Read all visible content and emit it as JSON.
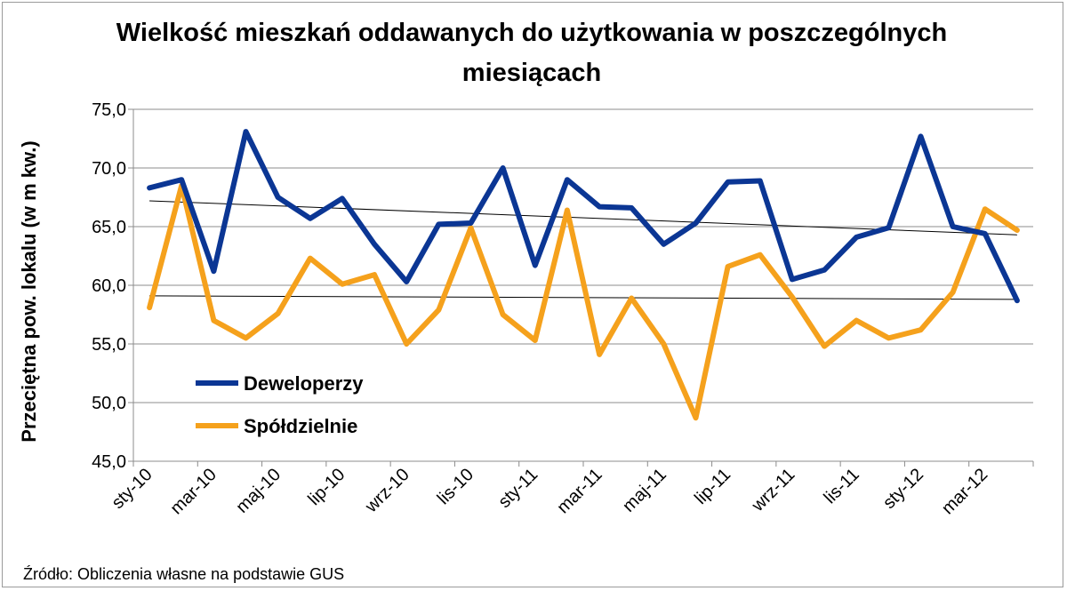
{
  "chart_data": {
    "type": "line",
    "title_lines": [
      "Wielkość mieszkań oddawanych do użytkowania  w poszczególnych",
      "miesiącach"
    ],
    "ylabel": "Przeciętna pow. lokalu (w m kw.)",
    "xlabel": "",
    "ylim": [
      45,
      75
    ],
    "yticks": [
      "45,0",
      "50,0",
      "55,0",
      "60,0",
      "65,0",
      "70,0",
      "75,0"
    ],
    "grid": true,
    "legend_position": "bottom-left inside",
    "categories": [
      "sty-10",
      "lut-10",
      "mar-10",
      "kwi-10",
      "maj-10",
      "cze-10",
      "lip-10",
      "sie-10",
      "wrz-10",
      "paź-10",
      "lis-10",
      "gru-10",
      "sty-11",
      "lut-11",
      "mar-11",
      "kwi-11",
      "maj-11",
      "cze-11",
      "lip-11",
      "sie-11",
      "wrz-11",
      "paź-11",
      "lis-11",
      "gru-11",
      "sty-12",
      "lut-12",
      "mar-12",
      "kwi-12"
    ],
    "xtick_labels": [
      "sty-10",
      "mar-10",
      "maj-10",
      "lip-10",
      "wrz-10",
      "lis-10",
      "sty-11",
      "mar-11",
      "maj-11",
      "lip-11",
      "wrz-11",
      "lis-11",
      "sty-12",
      "mar-12"
    ],
    "series": [
      {
        "name": "Deweloperzy",
        "color": "#0b3694",
        "values": [
          68.3,
          69.0,
          61.2,
          73.1,
          67.5,
          65.7,
          67.4,
          63.5,
          60.3,
          65.2,
          65.3,
          70.0,
          61.7,
          69.0,
          66.7,
          66.6,
          63.5,
          65.3,
          68.8,
          68.9,
          60.5,
          61.3,
          64.1,
          64.9,
          72.7,
          65.0,
          64.4,
          58.7
        ]
      },
      {
        "name": "Spółdzielnie",
        "color": "#f5a11c",
        "values": [
          58.1,
          68.5,
          57.0,
          55.5,
          57.6,
          62.3,
          60.1,
          60.9,
          55.0,
          57.9,
          64.9,
          57.5,
          55.3,
          66.4,
          54.1,
          58.9,
          55.0,
          48.7,
          61.6,
          62.6,
          59.0,
          54.8,
          57.0,
          55.5,
          56.2,
          59.4,
          66.5,
          64.7
        ]
      }
    ],
    "trendlines": [
      {
        "series": "Deweloperzy",
        "start": 67.2,
        "end": 64.3,
        "color": "#000000"
      },
      {
        "series": "Spółdzielnie",
        "start": 59.1,
        "end": 58.8,
        "color": "#000000"
      }
    ]
  },
  "source_note": "Źródło: Obliczenia własne na podstawie GUS"
}
